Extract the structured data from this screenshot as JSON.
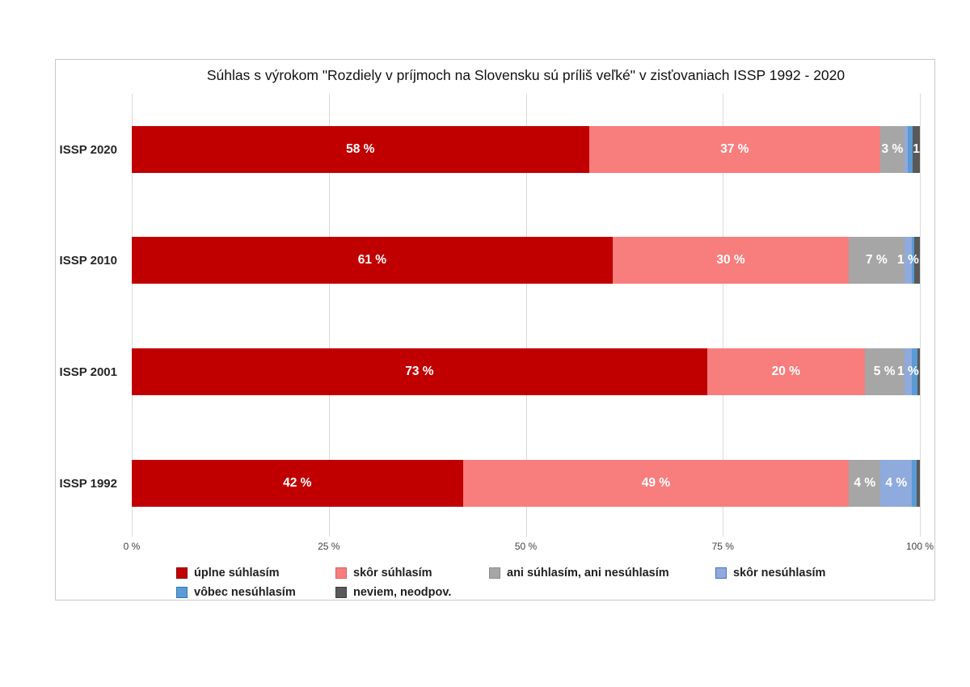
{
  "figure": {
    "title": "Súhlas s výrokom \"Rozdiely v príjmoch na Slovensku sú príliš veľké\" v zisťovaniach ISSP 1992 - 2020"
  },
  "chart_data": {
    "type": "bar",
    "variant": "horizontal-stacked-100percent",
    "title": "Súhlas s výrokom \"Rozdiely v príjmoch na Slovensku sú príliš veľké\" v zisťovaniach ISSP 1992 - 2020",
    "categories": [
      "ISSP 2020",
      "ISSP 2010",
      "ISSP 2001",
      "ISSP 1992"
    ],
    "xlim": [
      0,
      100
    ],
    "grid": true,
    "grid_color": "#d9d9d9",
    "value_label_color": "#ffffff",
    "legend_position": "bottom",
    "x_ticks": [
      {
        "label": "0 %",
        "value": 0
      },
      {
        "label": "25 %",
        "value": 25
      },
      {
        "label": "50 %",
        "value": 50
      },
      {
        "label": "75 %",
        "value": 75
      },
      {
        "label": "100 %",
        "value": 100
      }
    ],
    "series": [
      {
        "name": "úplne súhlasím",
        "color": "#c00000",
        "swatch_border": "#8f0000",
        "values": [
          58,
          61,
          73,
          42
        ],
        "bar_labels": [
          "58 %",
          "61 %",
          "73 %",
          "42 %"
        ]
      },
      {
        "name": "skôr súhlasím",
        "color": "#f87d7d",
        "swatch_border": "#d95f5f",
        "values": [
          37,
          30,
          20,
          49
        ],
        "bar_labels": [
          "37 %",
          "30 %",
          "20 %",
          "49 %"
        ]
      },
      {
        "name": "ani súhlasím, ani nesúhlasím",
        "color": "#a6a6a6",
        "swatch_border": "#8c8c8c",
        "values": [
          3,
          7,
          5,
          4
        ],
        "bar_labels": [
          "3 %",
          "7 %",
          "5 %",
          "4 %"
        ]
      },
      {
        "name": "skôr nesúhlasím",
        "color": "#8faadc",
        "swatch_border": "#4472c4",
        "values": [
          0.5,
          1,
          1,
          4
        ],
        "bar_labels": [
          "",
          "1 %",
          "1 %",
          "4 %"
        ]
      },
      {
        "name": "vôbec nesúhlasím",
        "color": "#5b9bd5",
        "swatch_border": "#2e75b6",
        "values": [
          0.6,
          0.3,
          0.7,
          0.6
        ],
        "bar_labels": [
          "",
          "",
          "",
          ""
        ]
      },
      {
        "name": "neviem, neodpov.",
        "color": "#595959",
        "swatch_border": "#3f3f3f",
        "values": [
          0.9,
          0.7,
          0.3,
          0.4
        ],
        "bar_labels": [
          "1",
          "",
          "",
          ""
        ]
      }
    ]
  }
}
